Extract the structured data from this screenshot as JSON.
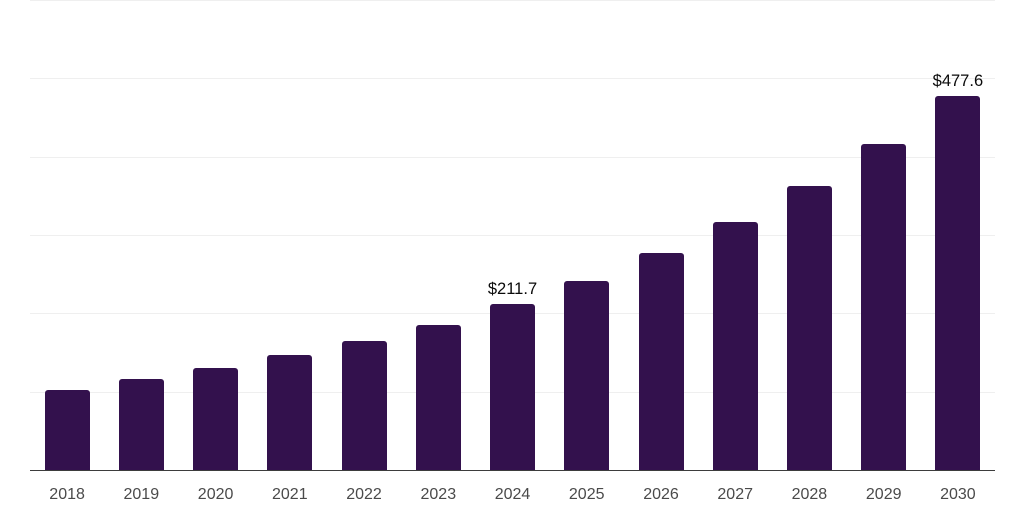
{
  "chart_data": {
    "type": "bar",
    "title": "",
    "xlabel": "",
    "ylabel": "",
    "categories": [
      "2018",
      "2019",
      "2020",
      "2021",
      "2022",
      "2023",
      "2024",
      "2025",
      "2026",
      "2027",
      "2028",
      "2029",
      "2030"
    ],
    "values": [
      101.9,
      116.5,
      130.6,
      147.1,
      165.0,
      185.4,
      211.7,
      241.8,
      276.5,
      317.2,
      362.5,
      416.3,
      477.6
    ],
    "data_labels": [
      "",
      "",
      "",
      "",
      "",
      "",
      "$211.7",
      "",
      "",
      "",
      "",
      "",
      "$477.6"
    ],
    "ylim": [
      0,
      600
    ],
    "gridline_interval": 100,
    "grid": true,
    "legend": false,
    "y_tick_labels_visible": false,
    "colors": {
      "bar": "#33114d",
      "axis_line": "#3d3d3d",
      "gridline": "#efefef",
      "x_tick_text": "#4a4a4a",
      "data_label_text": "#0a0a0a",
      "background": "#ffffff"
    }
  }
}
